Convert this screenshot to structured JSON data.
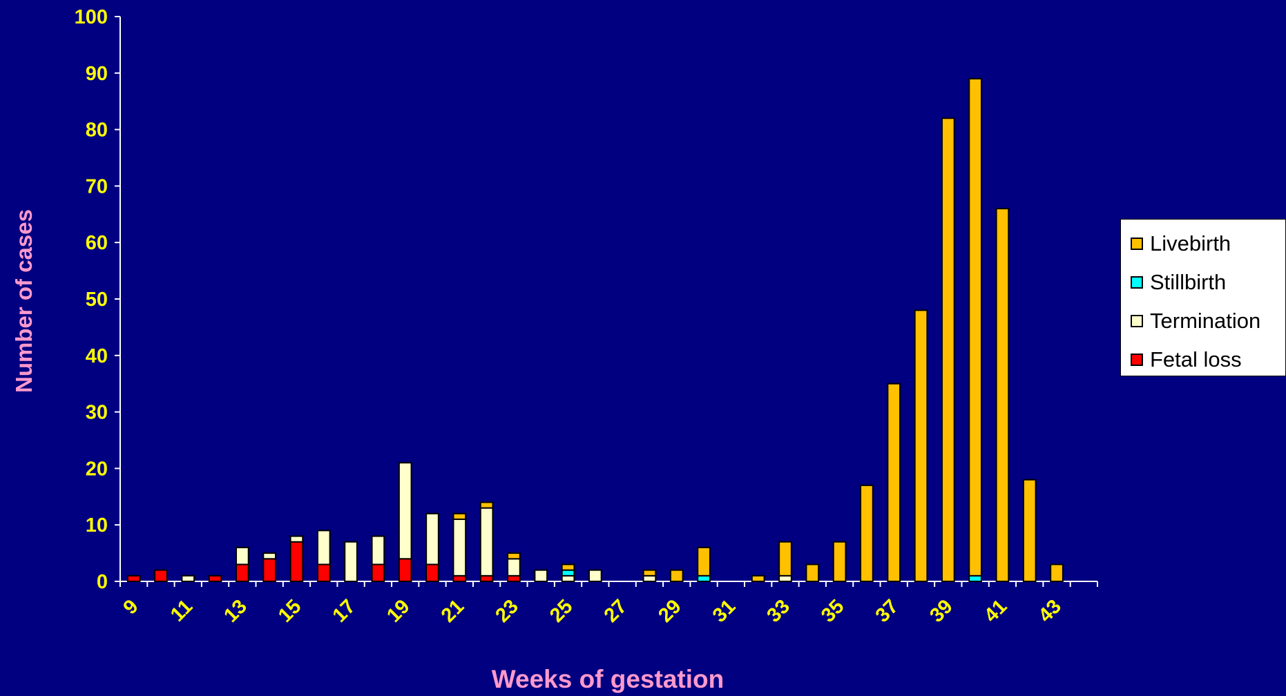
{
  "chart_data": {
    "type": "bar",
    "stacked": true,
    "xlabel": "Weeks of gestation",
    "ylabel": "Number of cases",
    "ylim": [
      0,
      100
    ],
    "yticks": [
      0,
      10,
      20,
      30,
      40,
      50,
      60,
      70,
      80,
      90,
      100
    ],
    "xtick_labels": [
      "9",
      "11",
      "13",
      "15",
      "17",
      "19",
      "21",
      "23",
      "25",
      "27",
      "29",
      "31",
      "33",
      "35",
      "37",
      "39",
      "41",
      "43"
    ],
    "categories": [
      "9",
      "10",
      "11",
      "12",
      "13",
      "14",
      "15",
      "16",
      "17",
      "18",
      "19",
      "20",
      "21",
      "22",
      "23",
      "24",
      "25",
      "26",
      "27",
      "28",
      "29",
      "30",
      "31",
      "32",
      "33",
      "34",
      "35",
      "36",
      "37",
      "38",
      "39",
      "40",
      "41",
      "42",
      "43",
      "44"
    ],
    "series": [
      {
        "name": "Fetal loss",
        "color": "#ff0000",
        "values": [
          1,
          2,
          0,
          1,
          3,
          4,
          7,
          3,
          0,
          3,
          4,
          3,
          1,
          1,
          1,
          0,
          0,
          0,
          0,
          0,
          0,
          0,
          0,
          0,
          0,
          0,
          0,
          0,
          0,
          0,
          0,
          0,
          0,
          0,
          0,
          0
        ]
      },
      {
        "name": "Termination",
        "color": "#ffffcc",
        "values": [
          0,
          0,
          1,
          0,
          3,
          1,
          1,
          6,
          7,
          5,
          17,
          9,
          10,
          12,
          3,
          2,
          1,
          2,
          0,
          1,
          0,
          0,
          0,
          0,
          1,
          0,
          0,
          0,
          0,
          0,
          0,
          0,
          0,
          0,
          0,
          0
        ]
      },
      {
        "name": "Stillbirth",
        "color": "#00ffff",
        "values": [
          0,
          0,
          0,
          0,
          0,
          0,
          0,
          0,
          0,
          0,
          0,
          0,
          0,
          0,
          0,
          0,
          1,
          0,
          0,
          0,
          0,
          1,
          0,
          0,
          0,
          0,
          0,
          0,
          0,
          0,
          0,
          1,
          0,
          0,
          0,
          0
        ]
      },
      {
        "name": "Livebirth",
        "color": "#ffc000",
        "values": [
          0,
          0,
          0,
          0,
          0,
          0,
          0,
          0,
          0,
          0,
          0,
          0,
          1,
          1,
          1,
          0,
          1,
          0,
          0,
          1,
          2,
          5,
          0,
          1,
          6,
          3,
          7,
          17,
          35,
          48,
          82,
          88,
          66,
          18,
          3,
          0
        ]
      }
    ],
    "legend": {
      "position": "right",
      "items": [
        {
          "label": "Livebirth",
          "color": "#ffc000"
        },
        {
          "label": "Stillbirth",
          "color": "#00ffff"
        },
        {
          "label": "Termination",
          "color": "#ffffcc"
        },
        {
          "label": "Fetal loss",
          "color": "#ff0000"
        }
      ]
    },
    "colors": {
      "background": "#000080",
      "tick_text": "#ffff00",
      "axis_title": "#ff99cc",
      "axis_line": "#ffffff"
    }
  }
}
